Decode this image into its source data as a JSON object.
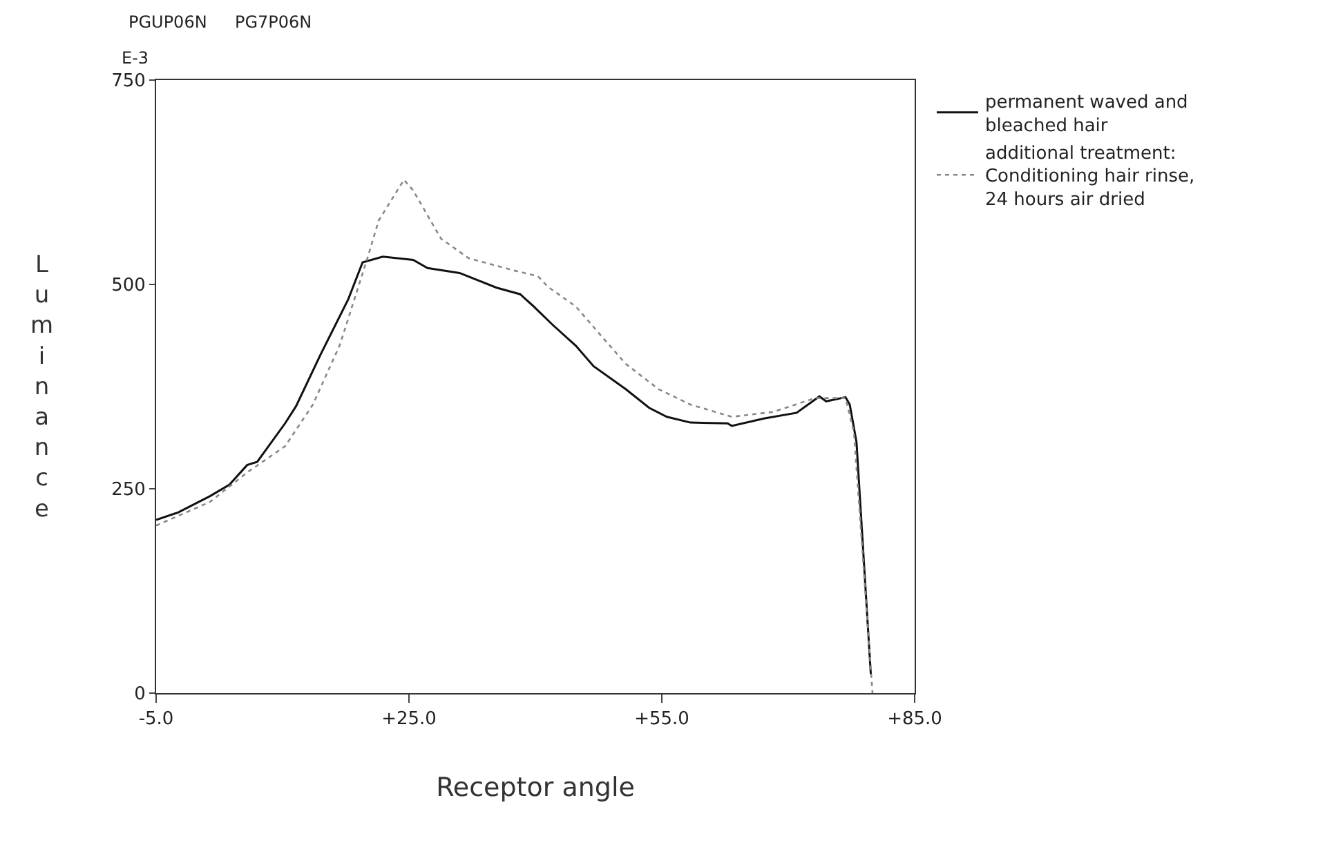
{
  "chart_data": {
    "type": "line",
    "xlabel": "Receptor angle",
    "ylabel": "Luminance",
    "annotations": [
      "PGUP06N",
      "PG7P06N",
      "E-3"
    ],
    "xlim": [
      -5,
      85
    ],
    "xticks": [
      {
        "value": -5,
        "label": "-5.0"
      },
      {
        "value": 25,
        "label": "+25.0"
      },
      {
        "value": 55,
        "label": "+55.0"
      },
      {
        "value": 85,
        "label": "+85.0"
      }
    ],
    "ylim": [
      0,
      750
    ],
    "yticks": [
      0,
      250,
      500,
      750
    ],
    "grid": false,
    "legend": "right",
    "marker": "none",
    "series": [
      {
        "name": "permanent waved and\nbleached hair",
        "color": "#111111",
        "line_style": "solid",
        "x": [
          -5,
          -2.4,
          1.4,
          3.7,
          5.8,
          7,
          10.3,
          11.6,
          14.5,
          17.8,
          19.5,
          21.9,
          25.5,
          27.2,
          31,
          35.4,
          38.2,
          39.8,
          42,
          44.8,
          46.9,
          50.7,
          53.5,
          55.6,
          58.4,
          62.8,
          63.3,
          67.1,
          71,
          73.7,
          74.5,
          76.8,
          77.3,
          78.1,
          79.8
        ],
        "values": [
          212,
          221,
          241,
          255,
          279,
          283,
          330,
          351,
          414,
          482,
          527,
          534,
          530,
          520,
          514,
          496,
          488,
          473,
          451,
          425,
          400,
          372,
          349,
          338,
          331,
          330,
          327,
          336,
          343,
          363,
          357,
          362,
          353,
          307,
          23
        ]
      },
      {
        "name": "additional treatment:\nConditioning hair rinse,\n24 hours air dried",
        "color": "#888888",
        "line_style": "dotted",
        "x": [
          -5,
          1.4,
          5.8,
          10.3,
          13.6,
          16.8,
          20.1,
          21.4,
          24.4,
          25.5,
          28.8,
          32.1,
          37.5,
          40.3,
          41.5,
          44.8,
          47.4,
          50.7,
          54.6,
          58.4,
          63.3,
          68.2,
          73.2,
          76.8,
          77.8,
          80
        ],
        "values": [
          205,
          234,
          270,
          302,
          353,
          426,
          533,
          578,
          628,
          615,
          556,
          532,
          517,
          510,
          497,
          473,
          442,
          403,
          372,
          353,
          338,
          344,
          361,
          361,
          319,
          0
        ]
      }
    ]
  }
}
